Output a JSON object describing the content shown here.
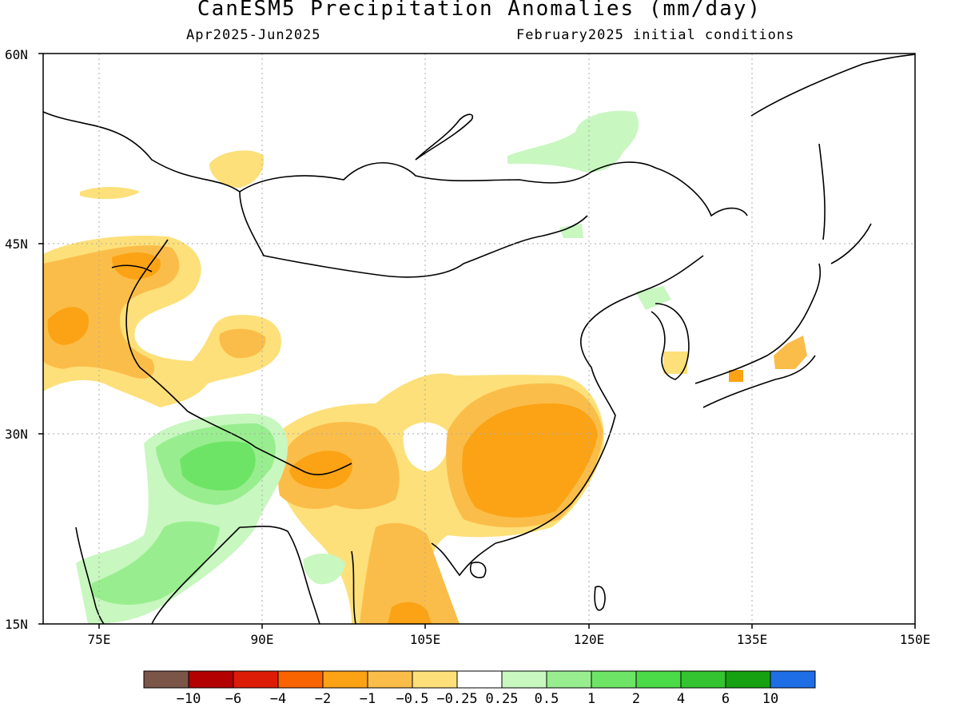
{
  "title": "CanESM5 Precipitation Anomalies (mm/day)",
  "period": "Apr2025-Jun2025",
  "initial_conditions": "February2025 initial conditions",
  "axes": {
    "lat_ticks": [
      "60N",
      "45N",
      "30N",
      "15N"
    ],
    "lon_ticks": [
      "75E",
      "90E",
      "105E",
      "120E",
      "135E",
      "150E"
    ]
  },
  "colorbar": {
    "colors": [
      "#7a5548",
      "#b30000",
      "#dd1c08",
      "#fa6400",
      "#fba315",
      "#fbbd49",
      "#fde07a",
      "#ffffff",
      "#c8f7c0",
      "#98ee8e",
      "#6ee466",
      "#4bdb48",
      "#34c431",
      "#16a112",
      "#1e6ee6"
    ],
    "labels": [
      "−10",
      "−6",
      "−4",
      "−2",
      "−1",
      "−0.5",
      "−0.25",
      "0.25",
      "0.5",
      "1",
      "2",
      "4",
      "6",
      "10"
    ]
  },
  "anomaly_fields": [
    {
      "class": "-0.5",
      "region": "Central Asia / Kazakhstan"
    },
    {
      "class": "-1",
      "region": "Kyrgyzstan / Tajikistan"
    },
    {
      "class": "-2",
      "region": "Fergana"
    },
    {
      "class": "-0.5",
      "region": "Southern Xinjiang"
    },
    {
      "class": "-0.5",
      "region": "Southern China"
    },
    {
      "class": "-2",
      "region": "Eastern China"
    },
    {
      "class": "-1",
      "region": "Yunnan / Myanmar"
    },
    {
      "class": "-1",
      "region": "Laos / Vietnam"
    },
    {
      "class": "0.5",
      "region": "Indian subcontinent"
    },
    {
      "class": "1",
      "region": "Tibet / Nepal"
    },
    {
      "class": "2",
      "region": "Himalaya"
    },
    {
      "class": "0.5",
      "region": "Northeast Mongolia / Amur"
    },
    {
      "class": "-1",
      "region": "Japan"
    }
  ]
}
